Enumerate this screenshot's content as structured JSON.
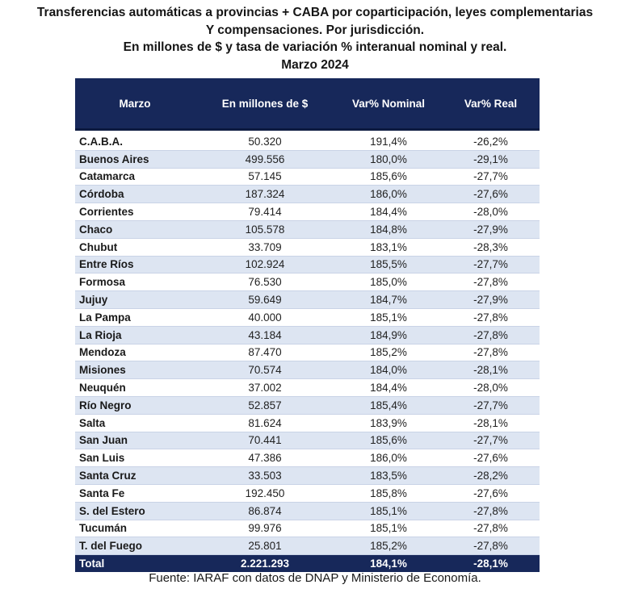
{
  "title": {
    "line1": "Transferencias automáticas a provincias + CABA por coparticipación, leyes complementarias",
    "line2": "Y compensaciones. Por jurisdicción.",
    "line3": "En millones de $ y tasa de variación % interanual nominal y real.",
    "line4": "Marzo 2024"
  },
  "table": {
    "headers": [
      "Marzo",
      "En millones de $",
      "Var% Nominal",
      "Var% Real"
    ],
    "rows": [
      [
        "C.A.B.A.",
        "50.320",
        "191,4%",
        "-26,2%"
      ],
      [
        "Buenos Aires",
        "499.556",
        "180,0%",
        "-29,1%"
      ],
      [
        "Catamarca",
        "57.145",
        "185,6%",
        "-27,7%"
      ],
      [
        "Córdoba",
        "187.324",
        "186,0%",
        "-27,6%"
      ],
      [
        "Corrientes",
        "79.414",
        "184,4%",
        "-28,0%"
      ],
      [
        "Chaco",
        "105.578",
        "184,8%",
        "-27,9%"
      ],
      [
        "Chubut",
        "33.709",
        "183,1%",
        "-28,3%"
      ],
      [
        "Entre Ríos",
        "102.924",
        "185,5%",
        "-27,7%"
      ],
      [
        "Formosa",
        "76.530",
        "185,0%",
        "-27,8%"
      ],
      [
        "Jujuy",
        "59.649",
        "184,7%",
        "-27,9%"
      ],
      [
        "La Pampa",
        "40.000",
        "185,1%",
        "-27,8%"
      ],
      [
        "La Rioja",
        "43.184",
        "184,9%",
        "-27,8%"
      ],
      [
        "Mendoza",
        "87.470",
        "185,2%",
        "-27,8%"
      ],
      [
        "Misiones",
        "70.574",
        "184,0%",
        "-28,1%"
      ],
      [
        "Neuquén",
        "37.002",
        "184,4%",
        "-28,0%"
      ],
      [
        "Río Negro",
        "52.857",
        "185,4%",
        "-27,7%"
      ],
      [
        "Salta",
        "81.624",
        "183,9%",
        "-28,1%"
      ],
      [
        "San Juan",
        "70.441",
        "185,6%",
        "-27,7%"
      ],
      [
        "San Luis",
        "47.386",
        "186,0%",
        "-27,6%"
      ],
      [
        "Santa Cruz",
        "33.503",
        "183,5%",
        "-28,2%"
      ],
      [
        "Santa Fe",
        "192.450",
        "185,8%",
        "-27,6%"
      ],
      [
        "S. del Estero",
        "86.874",
        "185,1%",
        "-27,8%"
      ],
      [
        "Tucumán",
        "99.976",
        "185,1%",
        "-27,8%"
      ],
      [
        "T. del Fuego",
        "25.801",
        "185,2%",
        "-27,8%"
      ]
    ],
    "total": [
      "Total",
      "2.221.293",
      "184,1%",
      "-28,1%"
    ]
  },
  "source": "Fuente: IARAF con datos de DNAP y Ministerio de Economía.",
  "colors": {
    "header_bg": "#17285a",
    "stripe": "#dde5f2",
    "row_border": "#c9d3e6"
  }
}
